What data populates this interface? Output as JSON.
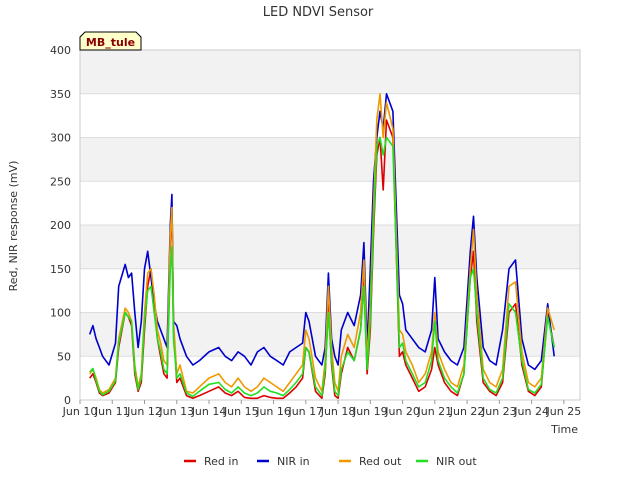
{
  "chart_data": {
    "type": "line",
    "title": "LED NDVI Sensor",
    "xlabel": "Time",
    "ylabel": "Red, NIR response (mV)",
    "badge": "MB_tule",
    "ylim": [
      0,
      400
    ],
    "yticks": [
      0,
      50,
      100,
      150,
      200,
      250,
      300,
      350,
      400
    ],
    "xlim": [
      9.5,
      25
    ],
    "xticks": [
      {
        "value": 9.5,
        "label": "Jun 10"
      },
      {
        "value": 10.5,
        "label": "Jun 11"
      },
      {
        "value": 11.5,
        "label": "Jun 12"
      },
      {
        "value": 12.5,
        "label": "Jun 13"
      },
      {
        "value": 13.5,
        "label": "Jun 14"
      },
      {
        "value": 14.5,
        "label": "Jun 15"
      },
      {
        "value": 15.5,
        "label": "Jun 16"
      },
      {
        "value": 16.5,
        "label": "Jun 17"
      },
      {
        "value": 17.5,
        "label": "Jun 18"
      },
      {
        "value": 18.5,
        "label": "Jun 19"
      },
      {
        "value": 19.5,
        "label": "Jun 20"
      },
      {
        "value": 20.5,
        "label": "Jun 21"
      },
      {
        "value": 21.5,
        "label": "Jun 22"
      },
      {
        "value": 22.5,
        "label": "Jun 23"
      },
      {
        "value": 23.5,
        "label": "Jun 24"
      },
      {
        "value": 24.5,
        "label": "Jun 25"
      }
    ],
    "grid": true,
    "legend_position": "bottom",
    "series": [
      {
        "name": "Red in",
        "color": "#dd0000",
        "x": [
          9.8,
          9.9,
          10.0,
          10.1,
          10.2,
          10.4,
          10.6,
          10.7,
          10.9,
          11.0,
          11.1,
          11.2,
          11.3,
          11.4,
          11.5,
          11.6,
          11.7,
          11.8,
          11.9,
          12.0,
          12.1,
          12.2,
          12.3,
          12.35,
          12.4,
          12.5,
          12.6,
          12.8,
          13.0,
          13.2,
          13.5,
          13.8,
          14.0,
          14.2,
          14.4,
          14.6,
          14.8,
          15.0,
          15.2,
          15.4,
          15.6,
          15.8,
          16.0,
          16.2,
          16.4,
          16.5,
          16.6,
          16.8,
          17.0,
          17.1,
          17.2,
          17.3,
          17.4,
          17.5,
          17.6,
          17.8,
          18.0,
          18.2,
          18.3,
          18.4,
          18.5,
          18.6,
          18.7,
          18.8,
          18.9,
          19.0,
          19.2,
          19.4,
          19.5,
          19.6,
          19.8,
          20.0,
          20.2,
          20.4,
          20.5,
          20.6,
          20.8,
          21.0,
          21.2,
          21.4,
          21.6,
          21.7,
          21.8,
          22.0,
          22.2,
          22.4,
          22.6,
          22.8,
          23.0,
          23.2,
          23.4,
          23.6,
          23.8,
          24.0,
          24.2
        ],
        "y": [
          25,
          30,
          20,
          8,
          5,
          8,
          20,
          60,
          100,
          95,
          85,
          30,
          10,
          20,
          80,
          130,
          150,
          110,
          70,
          50,
          30,
          25,
          180,
          215,
          80,
          20,
          25,
          5,
          2,
          5,
          10,
          15,
          8,
          5,
          10,
          3,
          2,
          2,
          5,
          3,
          2,
          2,
          8,
          15,
          25,
          60,
          55,
          10,
          2,
          30,
          110,
          40,
          5,
          2,
          30,
          60,
          45,
          80,
          140,
          30,
          80,
          190,
          280,
          300,
          240,
          320,
          300,
          50,
          55,
          40,
          25,
          10,
          15,
          35,
          60,
          40,
          20,
          10,
          5,
          30,
          140,
          170,
          90,
          20,
          10,
          5,
          20,
          100,
          110,
          40,
          10,
          5,
          15,
          100,
          60
        ]
      },
      {
        "name": "NIR in",
        "color": "#0000cc",
        "x": [
          9.8,
          9.9,
          10.0,
          10.1,
          10.2,
          10.4,
          10.6,
          10.7,
          10.9,
          11.0,
          11.1,
          11.2,
          11.3,
          11.4,
          11.5,
          11.6,
          11.7,
          11.8,
          11.9,
          12.0,
          12.1,
          12.2,
          12.3,
          12.35,
          12.4,
          12.5,
          12.6,
          12.8,
          13.0,
          13.2,
          13.5,
          13.8,
          14.0,
          14.2,
          14.4,
          14.6,
          14.8,
          15.0,
          15.2,
          15.4,
          15.6,
          15.8,
          16.0,
          16.2,
          16.4,
          16.5,
          16.6,
          16.8,
          17.0,
          17.1,
          17.2,
          17.3,
          17.4,
          17.5,
          17.6,
          17.8,
          18.0,
          18.2,
          18.3,
          18.4,
          18.5,
          18.6,
          18.7,
          18.8,
          18.9,
          19.0,
          19.2,
          19.4,
          19.5,
          19.6,
          19.8,
          20.0,
          20.2,
          20.4,
          20.5,
          20.6,
          20.8,
          21.0,
          21.2,
          21.4,
          21.6,
          21.7,
          21.8,
          22.0,
          22.2,
          22.4,
          22.6,
          22.8,
          23.0,
          23.2,
          23.4,
          23.6,
          23.8,
          24.0,
          24.2
        ],
        "y": [
          75,
          85,
          70,
          60,
          50,
          40,
          65,
          130,
          155,
          140,
          145,
          100,
          60,
          90,
          150,
          170,
          140,
          110,
          90,
          80,
          70,
          60,
          200,
          235,
          90,
          85,
          70,
          50,
          40,
          45,
          55,
          60,
          50,
          45,
          55,
          50,
          40,
          55,
          60,
          50,
          45,
          40,
          55,
          60,
          65,
          100,
          90,
          50,
          40,
          60,
          145,
          70,
          50,
          40,
          80,
          100,
          85,
          120,
          180,
          60,
          150,
          250,
          300,
          330,
          310,
          350,
          330,
          120,
          110,
          80,
          70,
          60,
          55,
          80,
          140,
          70,
          55,
          45,
          40,
          60,
          170,
          210,
          140,
          60,
          45,
          40,
          80,
          150,
          160,
          70,
          40,
          35,
          45,
          110,
          50
        ]
      },
      {
        "name": "Red out",
        "color": "#ee9900",
        "x": [
          9.8,
          9.9,
          10.0,
          10.1,
          10.2,
          10.4,
          10.6,
          10.7,
          10.9,
          11.0,
          11.1,
          11.2,
          11.3,
          11.4,
          11.5,
          11.6,
          11.7,
          11.8,
          11.9,
          12.0,
          12.1,
          12.2,
          12.3,
          12.35,
          12.4,
          12.5,
          12.6,
          12.8,
          13.0,
          13.2,
          13.5,
          13.8,
          14.0,
          14.2,
          14.4,
          14.6,
          14.8,
          15.0,
          15.2,
          15.4,
          15.6,
          15.8,
          16.0,
          16.2,
          16.4,
          16.5,
          16.6,
          16.8,
          17.0,
          17.1,
          17.2,
          17.3,
          17.4,
          17.5,
          17.6,
          17.8,
          18.0,
          18.2,
          18.3,
          18.4,
          18.5,
          18.6,
          18.7,
          18.8,
          18.9,
          19.0,
          19.2,
          19.4,
          19.5,
          19.6,
          19.8,
          20.0,
          20.2,
          20.4,
          20.5,
          20.6,
          20.8,
          21.0,
          21.2,
          21.4,
          21.6,
          21.7,
          21.8,
          22.0,
          22.2,
          22.4,
          22.6,
          22.8,
          23.0,
          23.2,
          23.4,
          23.6,
          23.8,
          24.0,
          24.2
        ],
        "y": [
          30,
          35,
          25,
          12,
          8,
          12,
          25,
          70,
          105,
          100,
          90,
          40,
          15,
          30,
          100,
          145,
          150,
          120,
          80,
          65,
          45,
          40,
          190,
          220,
          90,
          30,
          40,
          10,
          8,
          15,
          25,
          30,
          20,
          15,
          25,
          15,
          10,
          15,
          25,
          20,
          15,
          10,
          20,
          30,
          40,
          80,
          70,
          25,
          10,
          45,
          130,
          60,
          20,
          10,
          50,
          75,
          60,
          100,
          160,
          45,
          110,
          220,
          320,
          350,
          300,
          340,
          310,
          80,
          75,
          55,
          40,
          20,
          30,
          55,
          100,
          55,
          35,
          20,
          15,
          40,
          150,
          195,
          120,
          35,
          20,
          15,
          35,
          130,
          135,
          55,
          20,
          15,
          25,
          105,
          80
        ]
      },
      {
        "name": "NIR out",
        "color": "#22dd22",
        "x": [
          9.8,
          9.9,
          10.0,
          10.1,
          10.2,
          10.4,
          10.6,
          10.7,
          10.9,
          11.0,
          11.1,
          11.2,
          11.3,
          11.4,
          11.5,
          11.6,
          11.7,
          11.8,
          11.9,
          12.0,
          12.1,
          12.2,
          12.3,
          12.35,
          12.4,
          12.5,
          12.6,
          12.8,
          13.0,
          13.2,
          13.5,
          13.8,
          14.0,
          14.2,
          14.4,
          14.6,
          14.8,
          15.0,
          15.2,
          15.4,
          15.6,
          15.8,
          16.0,
          16.2,
          16.4,
          16.5,
          16.6,
          16.8,
          17.0,
          17.1,
          17.2,
          17.3,
          17.4,
          17.5,
          17.6,
          17.8,
          18.0,
          18.2,
          18.3,
          18.4,
          18.5,
          18.6,
          18.7,
          18.8,
          18.9,
          19.0,
          19.2,
          19.4,
          19.5,
          19.6,
          19.8,
          20.0,
          20.2,
          20.4,
          20.5,
          20.6,
          20.8,
          21.0,
          21.2,
          21.4,
          21.6,
          21.7,
          21.8,
          22.0,
          22.2,
          22.4,
          22.6,
          22.8,
          23.0,
          23.2,
          23.4,
          23.6,
          23.8,
          24.0,
          24.2
        ],
        "y": [
          32,
          36,
          22,
          10,
          6,
          10,
          22,
          65,
          100,
          95,
          90,
          35,
          12,
          25,
          90,
          125,
          130,
          100,
          70,
          55,
          35,
          30,
          150,
          175,
          70,
          25,
          30,
          8,
          4,
          10,
          18,
          20,
          12,
          8,
          15,
          8,
          5,
          8,
          15,
          10,
          8,
          5,
          12,
          20,
          30,
          60,
          55,
          15,
          5,
          35,
          100,
          45,
          10,
          5,
          35,
          55,
          45,
          80,
          130,
          35,
          90,
          200,
          290,
          300,
          280,
          300,
          290,
          60,
          65,
          45,
          30,
          15,
          20,
          45,
          90,
          45,
          25,
          15,
          8,
          30,
          140,
          150,
          100,
          25,
          12,
          8,
          25,
          110,
          100,
          45,
          12,
          8,
          18,
          95,
          60
        ]
      }
    ]
  }
}
